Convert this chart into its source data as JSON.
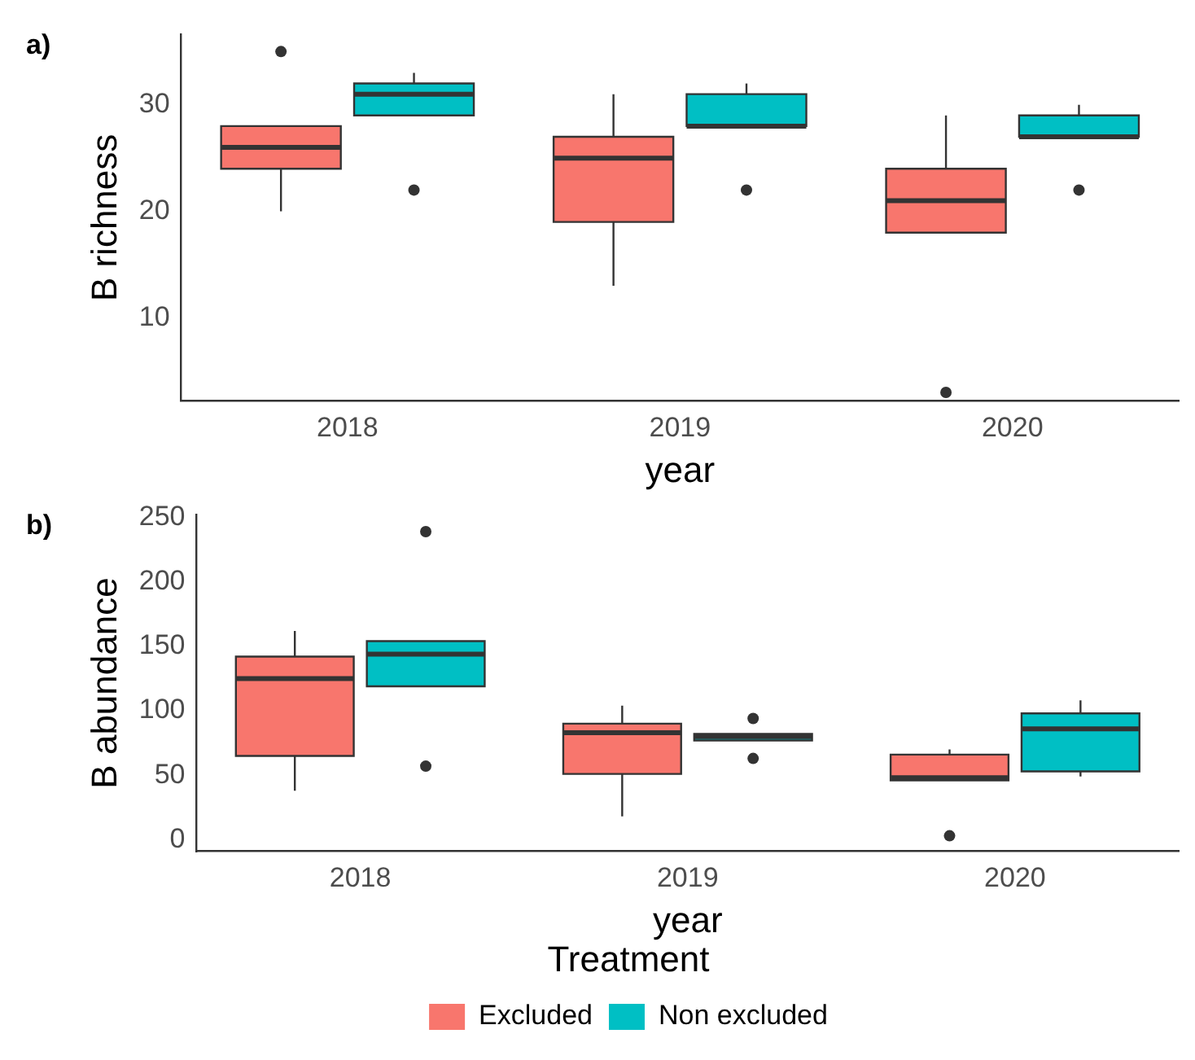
{
  "chart_data": [
    {
      "type": "box",
      "annotations": [
        "a)"
      ],
      "xlabel": "year",
      "ylabel": "B richness",
      "categories": [
        "2018",
        "2019",
        "2020"
      ],
      "ylim": [
        2.2,
        36.6
      ],
      "yticks": [
        10,
        20,
        30
      ],
      "grid": false,
      "legend": false,
      "series": [
        {
          "color": "#f8766d",
          "boxes": [
            {
              "low": 20,
              "q1": 24,
              "median": 26,
              "q3": 28,
              "high": 28,
              "outliers": [
                35
              ]
            },
            {
              "low": 13,
              "q1": 19,
              "median": 25,
              "q3": 27,
              "high": 31
            },
            {
              "low": 18,
              "q1": 18,
              "median": 21,
              "q3": 24,
              "high": 29,
              "outliers": [
                3
              ]
            }
          ]
        },
        {
          "color": "#00bfc4",
          "boxes": [
            {
              "low": 29,
              "q1": 29,
              "median": 31,
              "q3": 32,
              "high": 33,
              "outliers": [
                22
              ]
            },
            {
              "low": 28,
              "q1": 28,
              "median": 28,
              "q3": 31,
              "high": 32,
              "outliers": [
                22
              ]
            },
            {
              "low": 27,
              "q1": 27,
              "median": 27,
              "q3": 29,
              "high": 30,
              "outliers": [
                22
              ]
            }
          ]
        }
      ]
    },
    {
      "type": "box",
      "annotations": [
        "b)"
      ],
      "xlabel": "year",
      "ylabel": "B abundance",
      "categories": [
        "2018",
        "2019",
        "2020"
      ],
      "ylim": [
        -9,
        252
      ],
      "yticks": [
        0,
        50,
        100,
        150,
        200,
        250
      ],
      "grid": false,
      "legend": "bottom",
      "legend_title": "Treatment",
      "series": [
        {
          "name": "Excluded",
          "color": "#f8766d",
          "boxes": [
            {
              "low": 38,
              "q1": 65,
              "median": 125,
              "q3": 142,
              "high": 162
            },
            {
              "low": 18,
              "q1": 51,
              "median": 83,
              "q3": 90,
              "high": 104
            },
            {
              "low": 46,
              "q1": 46,
              "median": 48,
              "q3": 66,
              "high": 70,
              "outliers": [
                3
              ]
            }
          ]
        },
        {
          "name": "Non excluded",
          "color": "#00bfc4",
          "boxes": [
            {
              "low": 119,
              "q1": 119,
              "median": 144,
              "q3": 154,
              "high": 154,
              "outliers": [
                239,
                57
              ]
            },
            {
              "low": 77,
              "q1": 77,
              "median": 80,
              "q3": 82,
              "high": 82,
              "outliers": [
                94,
                63
              ]
            },
            {
              "low": 49,
              "q1": 53,
              "median": 86,
              "q3": 98,
              "high": 108
            }
          ]
        }
      ]
    }
  ]
}
